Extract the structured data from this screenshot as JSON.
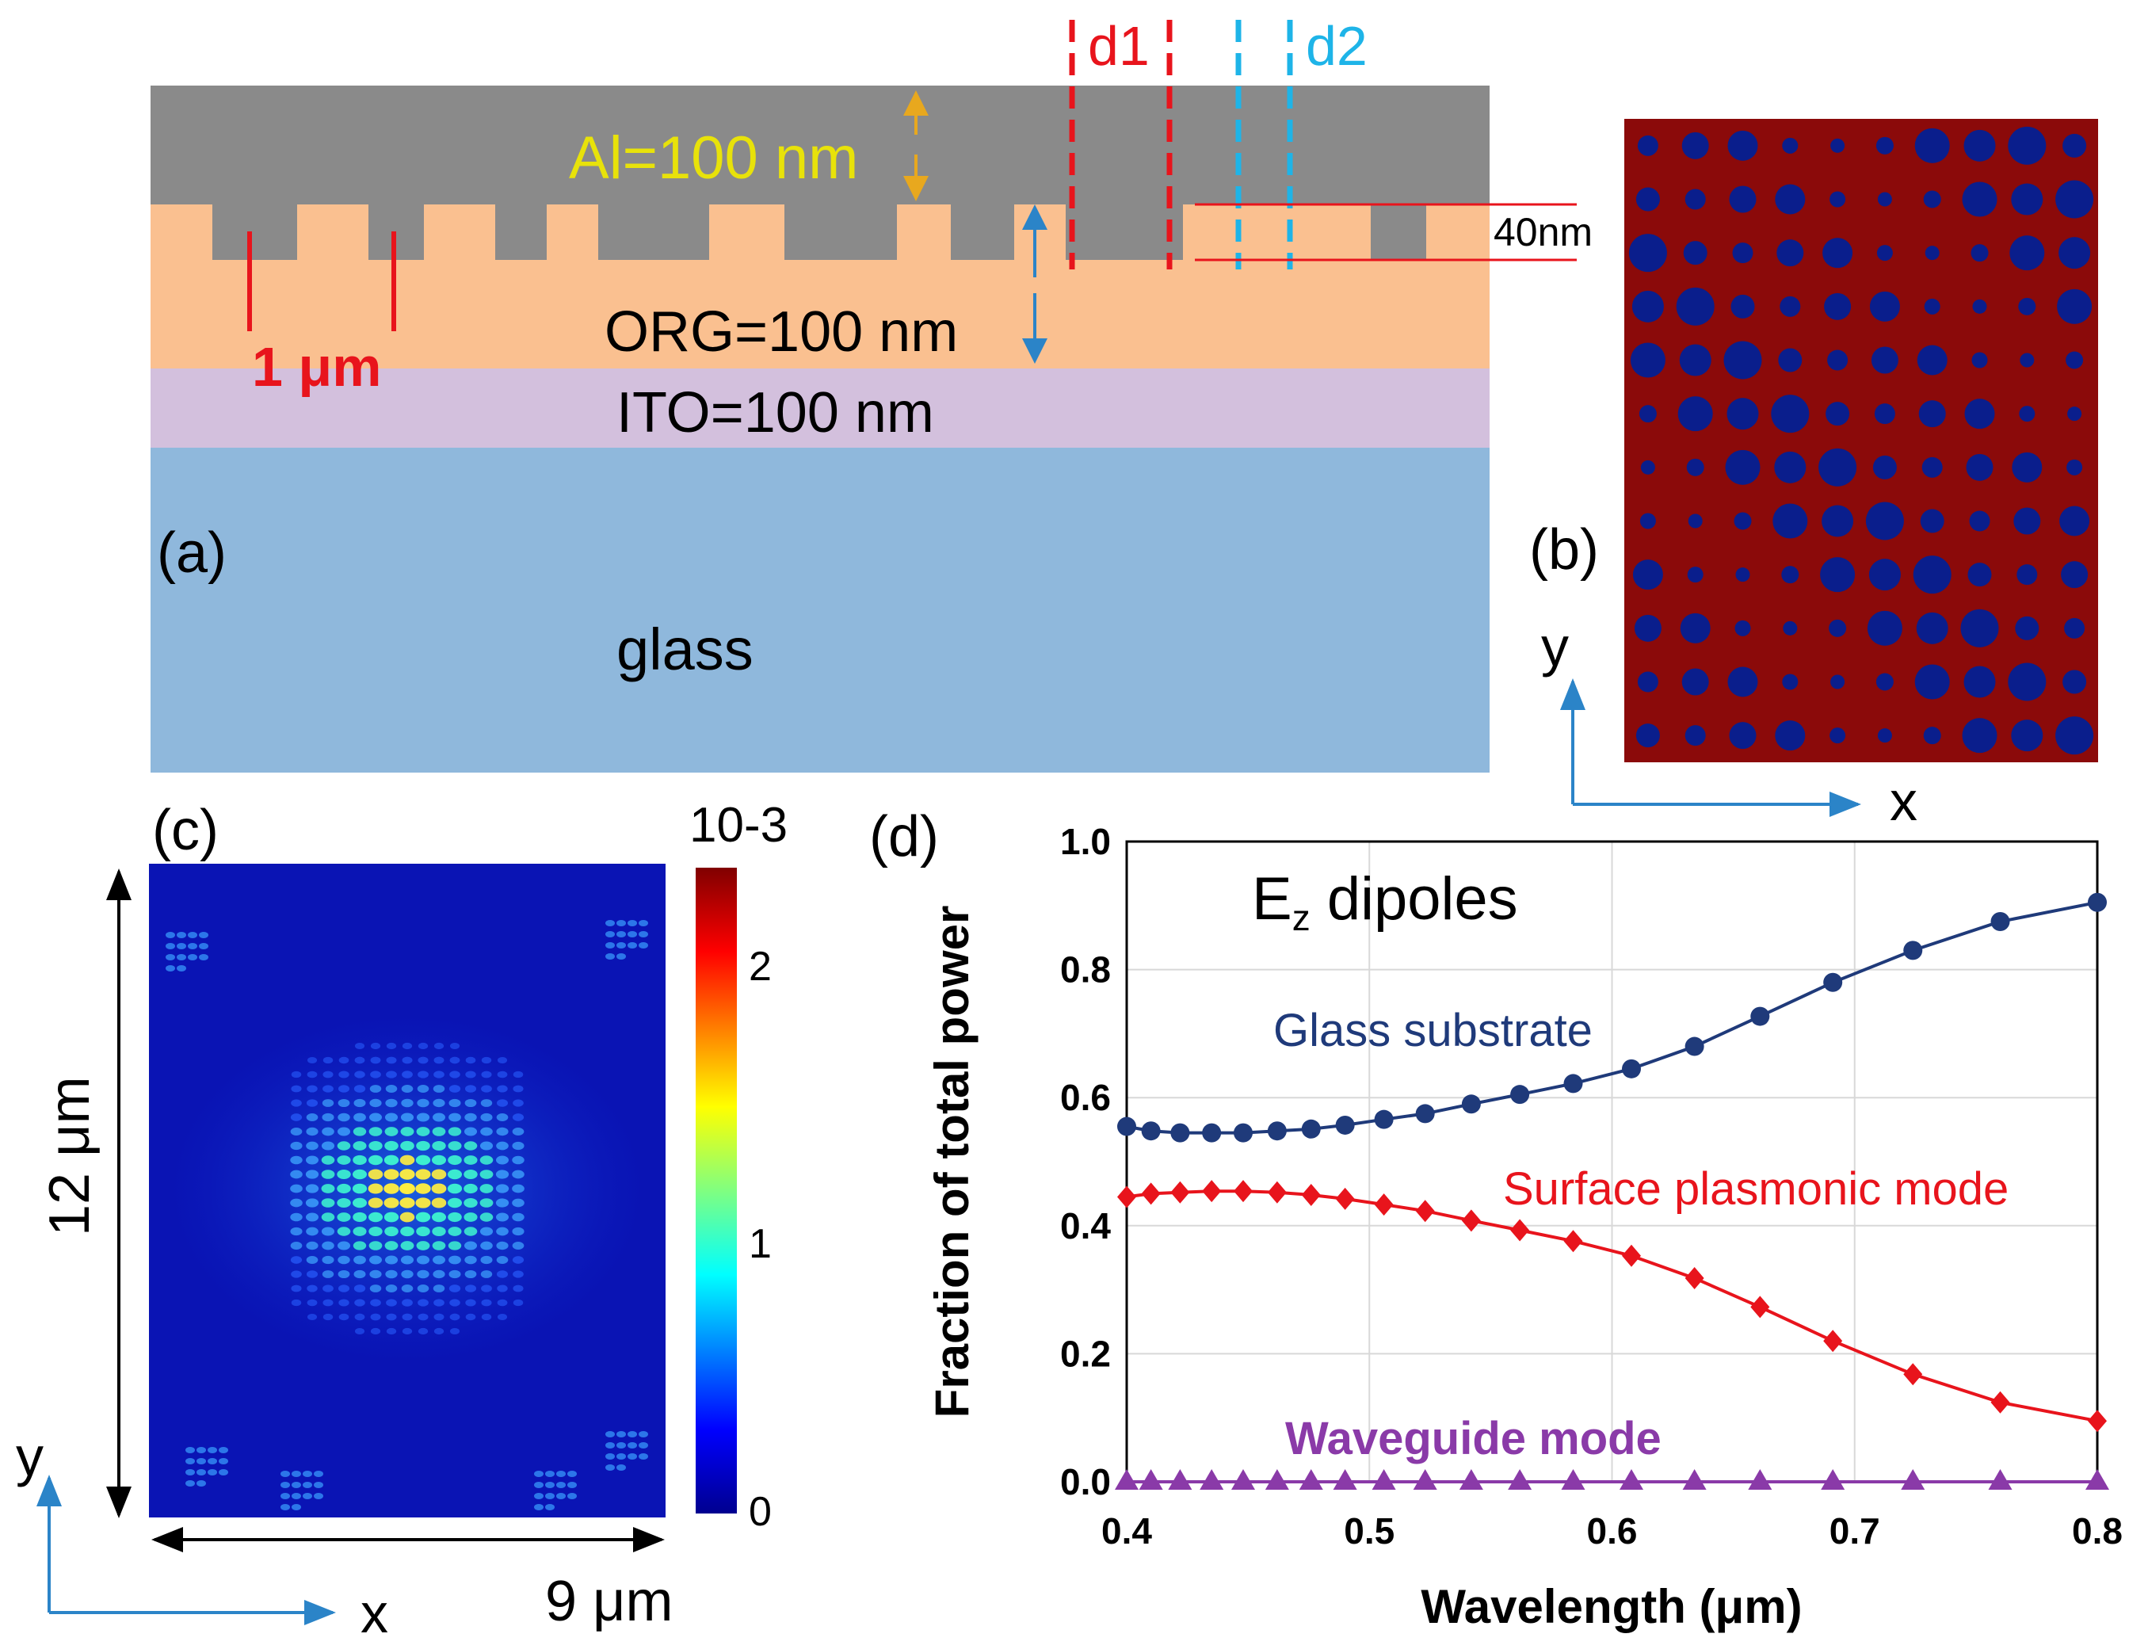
{
  "panel_a": {
    "label": "(a)",
    "al_label": "Al=100 nm",
    "org_label": "ORG=100 nm",
    "ito_label": "ITO=100 nm",
    "glass_label": "glass",
    "scale_label": "1 μm",
    "d1_label": "d1",
    "d2_label": "d2",
    "depth_label": "40nm",
    "colors": {
      "al": "#8a8a8a",
      "org": "#fac090",
      "ito": "#d3c0dd",
      "glass": "#8fb8dc",
      "d1": "#e8141c",
      "d2": "#1eb4e8"
    }
  },
  "panel_b": {
    "label": "(b)",
    "axis_x": "x",
    "axis_y": "y",
    "colors": {
      "background": "#8b0a0a",
      "holes": "#0a1e8c"
    }
  },
  "panel_c": {
    "label": "(c)",
    "colorbar_exponent": "10-3",
    "colorbar_ticks": [
      "2",
      "1",
      "0"
    ],
    "height_label": "12 μm",
    "width_label": "9 μm",
    "axis_x": "x",
    "axis_y": "y"
  },
  "panel_d": {
    "label": "(d)",
    "annotation": "Ez dipoles",
    "series_labels": {
      "glass": "Glass substrate",
      "sp": "Surface plasmonic mode",
      "wg": "Waveguide mode"
    }
  },
  "chart_data": {
    "type": "line",
    "title": "",
    "xlabel": "Wavelength (μm)",
    "ylabel": "Fraction of total power",
    "xlim": [
      0.4,
      0.8
    ],
    "ylim": [
      0.0,
      1.0
    ],
    "xticks": [
      "0.4",
      "0.5",
      "0.6",
      "0.7",
      "0.8"
    ],
    "yticks": [
      "0.0",
      "0.2",
      "0.4",
      "0.6",
      "0.8",
      "1.0"
    ],
    "grid": true,
    "x": [
      0.4,
      0.41,
      0.422,
      0.435,
      0.448,
      0.462,
      0.476,
      0.49,
      0.506,
      0.523,
      0.542,
      0.562,
      0.584,
      0.608,
      0.634,
      0.661,
      0.691,
      0.724,
      0.76,
      0.8
    ],
    "series": [
      {
        "name": "Glass substrate",
        "color": "#1f3a7a",
        "marker": "circle",
        "values": [
          0.555,
          0.548,
          0.545,
          0.545,
          0.545,
          0.548,
          0.551,
          0.557,
          0.566,
          0.575,
          0.59,
          0.605,
          0.622,
          0.645,
          0.68,
          0.727,
          0.78,
          0.83,
          0.875,
          0.905
        ]
      },
      {
        "name": "Surface plasmonic mode",
        "color": "#e8141c",
        "marker": "diamond",
        "values": [
          0.445,
          0.45,
          0.452,
          0.454,
          0.454,
          0.452,
          0.448,
          0.442,
          0.433,
          0.423,
          0.408,
          0.393,
          0.376,
          0.353,
          0.318,
          0.273,
          0.22,
          0.168,
          0.124,
          0.095
        ]
      },
      {
        "name": "Waveguide mode",
        "color": "#8a3aa8",
        "marker": "triangle",
        "values": [
          0.0,
          0.0,
          0.0,
          0.0,
          0.0,
          0.0,
          0.0,
          0.0,
          0.0,
          0.0,
          0.0,
          0.0,
          0.0,
          0.0,
          0.0,
          0.0,
          0.0,
          0.0,
          0.0,
          0.0
        ]
      }
    ]
  }
}
